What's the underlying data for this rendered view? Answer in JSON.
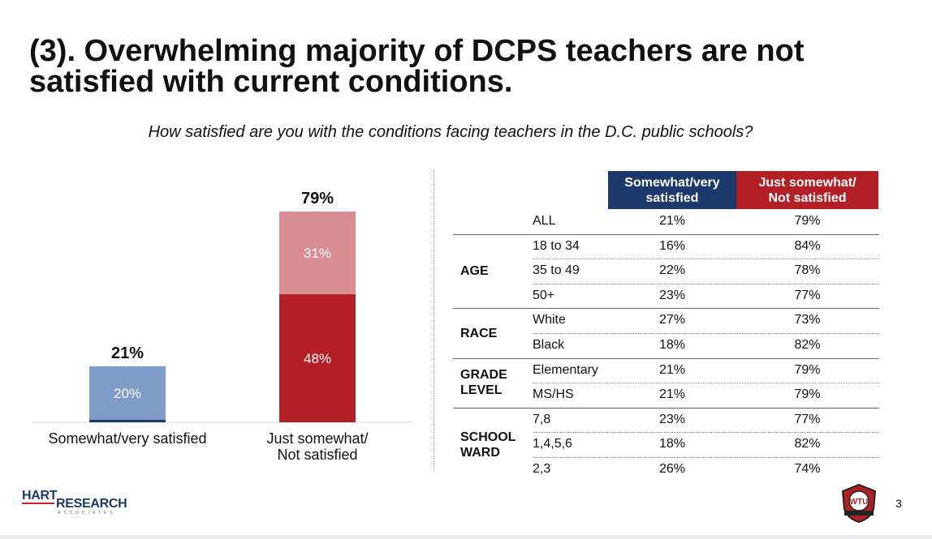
{
  "title": "(3). Overwhelming majority of DCPS teachers are not satisfied with current conditions.",
  "subtitle": "How satisfied are you with the conditions facing teachers in the D.C. public schools?",
  "colors": {
    "navy": "#1b3a6b",
    "red": "#b22026",
    "satisfied_light": "#7f9cc9",
    "not_satisfied_light": "#d98c92",
    "not_satisfied_dark": "#b22026"
  },
  "chart_data": {
    "type": "bar",
    "stacked": true,
    "categories": [
      "Somewhat/very satisfied",
      "Just somewhat/\nNot satisfied"
    ],
    "totals": [
      "21%",
      "79%"
    ],
    "segments": [
      [
        {
          "value": 1,
          "label": "",
          "color": "#1b3a6b"
        },
        {
          "value": 20,
          "label": "20%",
          "color": "#7f9cc9"
        }
      ],
      [
        {
          "value": 48,
          "label": "48%",
          "color": "#b22026"
        },
        {
          "value": 31,
          "label": "31%",
          "color": "#d98c92"
        }
      ]
    ],
    "ylim": [
      0,
      79
    ],
    "grid": false
  },
  "table": {
    "headers": [
      "Somewhat/very\nsatisfied",
      "Just somewhat/\nNot satisfied"
    ],
    "groups": [
      {
        "name": "",
        "rows": [
          {
            "label": "ALL",
            "satisfied": "21%",
            "not_satisfied": "79%"
          }
        ]
      },
      {
        "name": "AGE",
        "rows": [
          {
            "label": "18 to 34",
            "satisfied": "16%",
            "not_satisfied": "84%"
          },
          {
            "label": "35 to 49",
            "satisfied": "22%",
            "not_satisfied": "78%"
          },
          {
            "label": "50+",
            "satisfied": "23%",
            "not_satisfied": "77%"
          }
        ]
      },
      {
        "name": "RACE",
        "rows": [
          {
            "label": "White",
            "satisfied": "27%",
            "not_satisfied": "73%"
          },
          {
            "label": "Black",
            "satisfied": "18%",
            "not_satisfied": "82%"
          }
        ]
      },
      {
        "name": "GRADE\nLEVEL",
        "rows": [
          {
            "label": "Elementary",
            "satisfied": "21%",
            "not_satisfied": "79%"
          },
          {
            "label": "MS/HS",
            "satisfied": "21%",
            "not_satisfied": "79%"
          }
        ]
      },
      {
        "name": "SCHOOL\nWARD",
        "rows": [
          {
            "label": "7,8",
            "satisfied": "23%",
            "not_satisfied": "77%"
          },
          {
            "label": "1,4,5,6",
            "satisfied": "18%",
            "not_satisfied": "82%"
          },
          {
            "label": "2,3",
            "satisfied": "26%",
            "not_satisfied": "74%"
          }
        ]
      }
    ]
  },
  "footer": {
    "logo_hart": "HART",
    "logo_research": "RESEARCH",
    "logo_associates": "ASSOCIATES",
    "logo_wtu": "WTU",
    "page_number": "3"
  }
}
